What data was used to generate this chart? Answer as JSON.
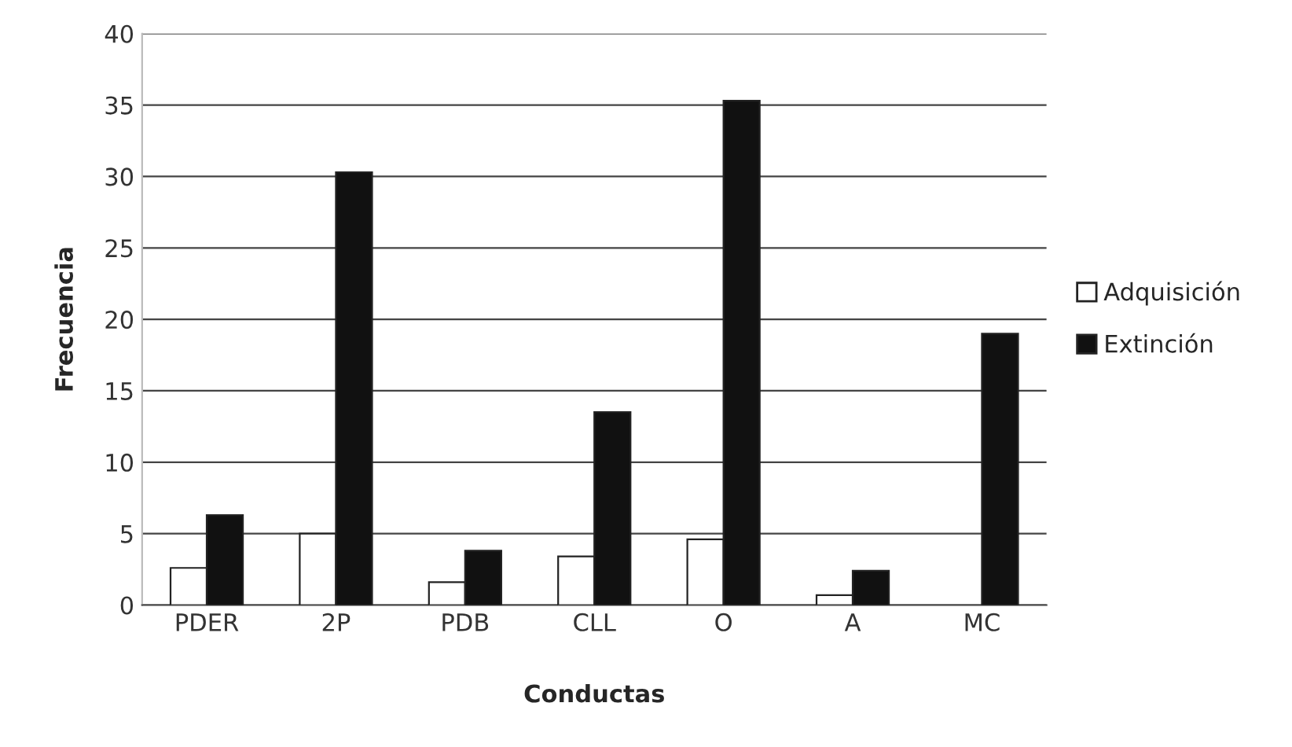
{
  "chart_data": {
    "type": "bar",
    "xlabel": "Conductas",
    "ylabel": "Frecuencia",
    "categories": [
      "PDER",
      "2P",
      "PDB",
      "CLL",
      "O",
      "A",
      "MC"
    ],
    "series": [
      {
        "name": "Adquisición",
        "color": "#ffffff",
        "values": [
          2.6,
          5,
          1.6,
          3.4,
          4.6,
          0.7,
          null
        ]
      },
      {
        "name": "Extinción",
        "color": "#111111",
        "values": [
          6.3,
          30.3,
          3.8,
          13.5,
          35.3,
          2.4,
          19
        ]
      }
    ],
    "ylim": [
      0,
      40
    ],
    "yticks": [
      0,
      5,
      10,
      15,
      20,
      25,
      30,
      35,
      40
    ],
    "grid": "y",
    "legend": "right"
  }
}
